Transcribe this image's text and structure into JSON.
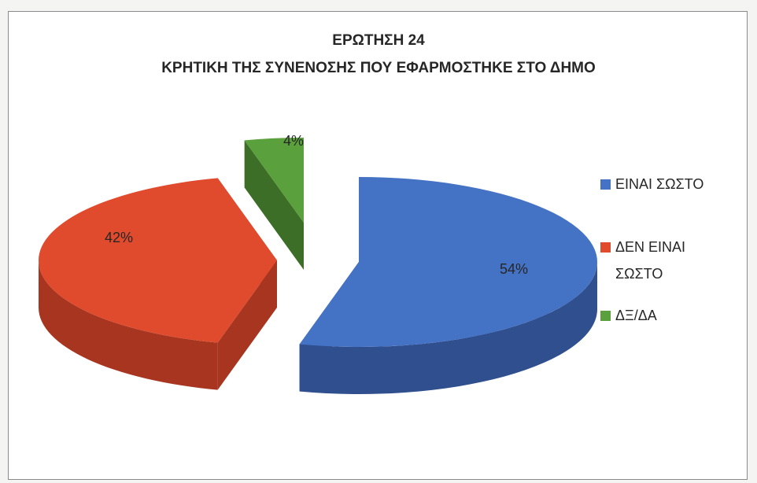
{
  "chart_data": {
    "type": "pie",
    "title_lines": [
      "ΕΡΩΤΗΣΗ 24",
      "ΚΡΗΤΙΚΗ ΤΗΣ ΣΥΝΕΝΟΣΗΣ ΠΟΥ ΕΦΑΡΜΟΣΤΗΚΕ ΣΤΟ ΔΗΜΟ"
    ],
    "categories": [
      "ΕΙΝΑΙ ΣΩΣΤΟ",
      "ΔΕΝ ΕΙΝΑΙ ΣΩΣΤΟ",
      "ΔΞ/ΔΑ"
    ],
    "legend_lines": [
      [
        "ΕΙΝΑΙ ΣΩΣΤΟ"
      ],
      [
        "ΔΕΝ ΕΙΝΑΙ",
        "ΣΩΣΤΟ"
      ],
      [
        "ΔΞ/ΔΑ"
      ]
    ],
    "values": [
      54,
      42,
      4
    ],
    "labels": [
      "54%",
      "42%",
      "4%"
    ],
    "colors": [
      "#4472c4",
      "#e04a2d",
      "#5aa03c"
    ],
    "side_colors": [
      "#2f4f8f",
      "#a8351f",
      "#3c6e28"
    ],
    "style": "3d-exploded",
    "legend_position": "right"
  }
}
